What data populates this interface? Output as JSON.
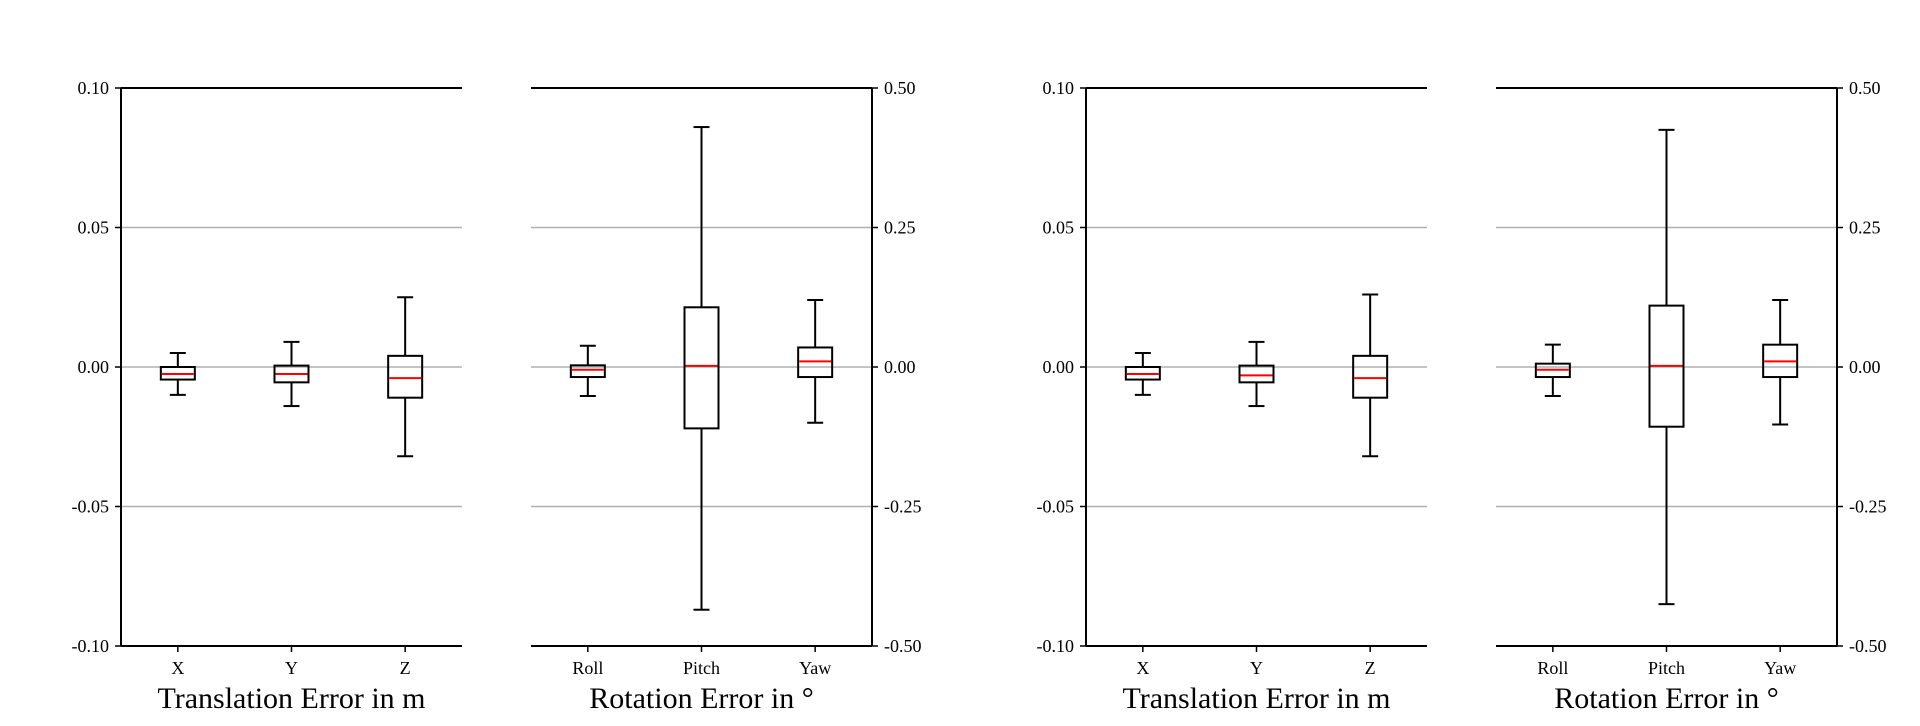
{
  "chart_data": [
    {
      "type": "box",
      "xlabel": "Translation Error in m",
      "ylabel": "",
      "ylim": [
        -0.1,
        0.1
      ],
      "yticks": [
        "0.10",
        "0.05",
        "0.00",
        "-0.05",
        "-0.10"
      ],
      "ytick_values": [
        0.1,
        0.05,
        0.0,
        -0.05,
        -0.1
      ],
      "yaxis_side": "left",
      "grid": "horizontal",
      "categories": [
        "X",
        "Y",
        "Z"
      ],
      "boxes": [
        {
          "whisker_low": -0.01,
          "q1": -0.0045,
          "median": -0.0025,
          "q3": 0.0,
          "whisker_high": 0.005
        },
        {
          "whisker_low": -0.014,
          "q1": -0.0055,
          "median": -0.0025,
          "q3": 0.0005,
          "whisker_high": 0.009
        },
        {
          "whisker_low": -0.032,
          "q1": -0.011,
          "median": -0.004,
          "q3": 0.004,
          "whisker_high": 0.025
        }
      ]
    },
    {
      "type": "box",
      "xlabel": "Rotation Error in °",
      "ylabel": "",
      "ylim": [
        -0.5,
        0.5
      ],
      "yticks": [
        "0.50",
        "0.25",
        "0.00",
        "-0.25",
        "-0.50"
      ],
      "ytick_values": [
        0.5,
        0.25,
        0.0,
        -0.25,
        -0.5
      ],
      "yaxis_side": "right",
      "grid": "horizontal",
      "categories": [
        "Roll",
        "Pitch",
        "Yaw"
      ],
      "boxes": [
        {
          "whisker_low": -0.052,
          "q1": -0.018,
          "median": -0.005,
          "q3": 0.003,
          "whisker_high": 0.038
        },
        {
          "whisker_low": -0.435,
          "q1": -0.11,
          "median": 0.002,
          "q3": 0.107,
          "whisker_high": 0.43
        },
        {
          "whisker_low": -0.1,
          "q1": -0.018,
          "median": 0.01,
          "q3": 0.035,
          "whisker_high": 0.12
        }
      ]
    },
    {
      "type": "box",
      "xlabel": "Translation Error in m",
      "ylabel": "",
      "ylim": [
        -0.1,
        0.1
      ],
      "yticks": [
        "0.10",
        "0.05",
        "0.00",
        "-0.05",
        "-0.10"
      ],
      "ytick_values": [
        0.1,
        0.05,
        0.0,
        -0.05,
        -0.1
      ],
      "yaxis_side": "left",
      "grid": "horizontal",
      "categories": [
        "X",
        "Y",
        "Z"
      ],
      "boxes": [
        {
          "whisker_low": -0.01,
          "q1": -0.0045,
          "median": -0.0025,
          "q3": 0.0,
          "whisker_high": 0.005
        },
        {
          "whisker_low": -0.014,
          "q1": -0.0055,
          "median": -0.003,
          "q3": 0.0005,
          "whisker_high": 0.009
        },
        {
          "whisker_low": -0.032,
          "q1": -0.011,
          "median": -0.004,
          "q3": 0.004,
          "whisker_high": 0.026
        }
      ]
    },
    {
      "type": "box",
      "xlabel": "Rotation Error in °",
      "ylabel": "",
      "ylim": [
        -0.5,
        0.5
      ],
      "yticks": [
        "0.50",
        "0.25",
        "0.00",
        "-0.25",
        "-0.50"
      ],
      "ytick_values": [
        0.5,
        0.25,
        0.0,
        -0.25,
        -0.5
      ],
      "yaxis_side": "right",
      "grid": "horizontal",
      "categories": [
        "Roll",
        "Pitch",
        "Yaw"
      ],
      "boxes": [
        {
          "whisker_low": -0.052,
          "q1": -0.018,
          "median": -0.005,
          "q3": 0.006,
          "whisker_high": 0.04
        },
        {
          "whisker_low": -0.425,
          "q1": -0.107,
          "median": 0.002,
          "q3": 0.11,
          "whisker_high": 0.425
        },
        {
          "whisker_low": -0.103,
          "q1": -0.018,
          "median": 0.01,
          "q3": 0.04,
          "whisker_high": 0.12
        }
      ]
    }
  ],
  "colors": {
    "median": "#ff0000",
    "box": "#000000",
    "grid": "#b0b0b0"
  }
}
